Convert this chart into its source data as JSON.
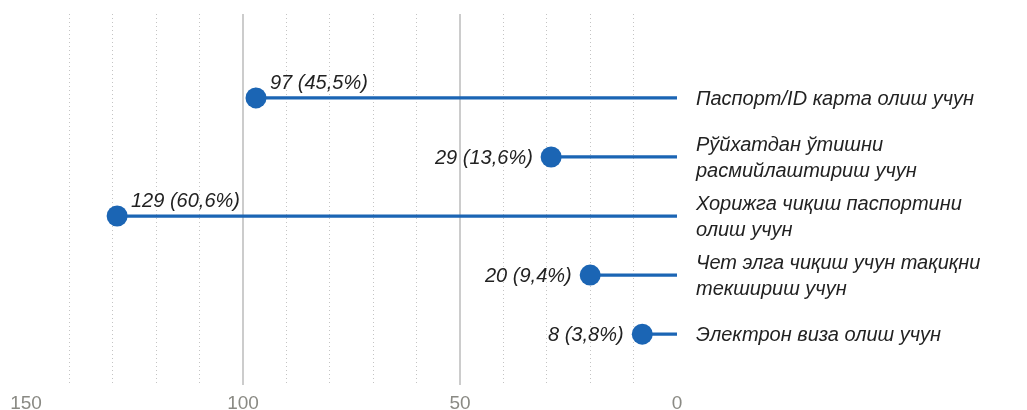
{
  "chart_data": {
    "type": "lollipop",
    "orientation": "horizontal",
    "categories": [
      "Паспорт/ID карта олиш учун",
      "Рўйхатдан ўтишни расмийлаштириш учун",
      "Хорижга чиқиш паспортини олиш учун",
      "Чет элга чиқиш учун тақиқни текшириш учун",
      "Электрон виза олиш учун"
    ],
    "values": [
      97,
      29,
      129,
      20,
      8
    ],
    "color": "#1b65b4",
    "value_labels": [
      "97 (45,5%)",
      "29 (13,6%)",
      "129 (60,6%)",
      "20 (9,4%)",
      "8 (3,8%)"
    ],
    "xlim": [
      150,
      0
    ],
    "xticks": [
      150,
      {
        "value": 140,
        "label": null
      },
      {
        "value": 130,
        "label": null
      },
      {
        "value": 120,
        "label": null
      },
      {
        "value": 110,
        "label": null
      },
      100,
      {
        "value": 90,
        "label": null
      },
      {
        "value": 80,
        "label": null
      },
      {
        "value": 70,
        "label": null
      },
      {
        "value": 60,
        "label": null
      },
      50,
      {
        "value": 40,
        "label": null
      },
      {
        "value": 30,
        "label": null
      },
      {
        "value": 20,
        "label": null
      },
      {
        "value": 10,
        "label": null
      },
      0
    ],
    "grid": "x",
    "marker": "circle"
  }
}
